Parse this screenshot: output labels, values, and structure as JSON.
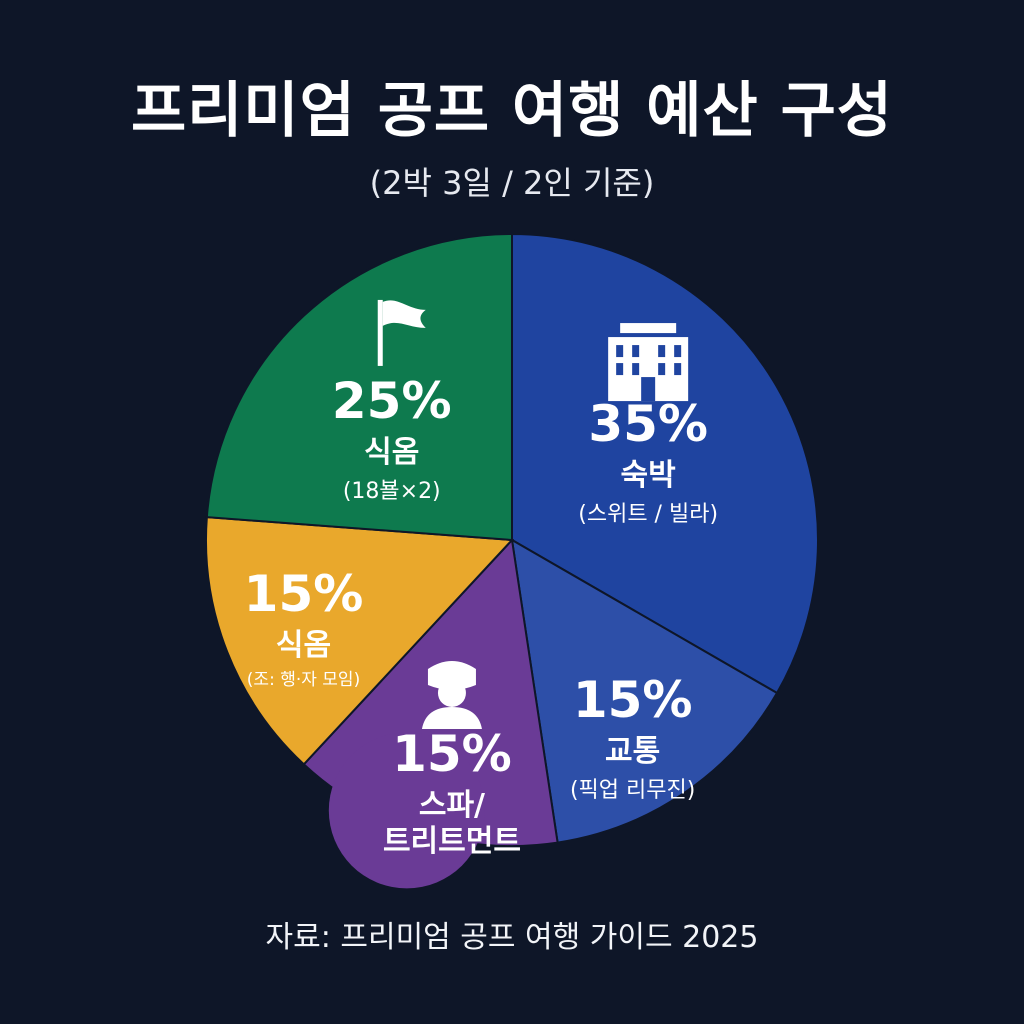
{
  "header": {
    "title": "프리미엄 공프 여행 예산 구성",
    "subtitle": "(2박 3일 / 2인 기준)"
  },
  "footer": {
    "source": "자료: 프리미엄 공프 여행 가이드 2025"
  },
  "chart_data": {
    "type": "pie",
    "title": "프리미엄 공프 여행 예산 구성",
    "subtitle": "(2박 3일 / 2인 기준)",
    "unit": "%",
    "slices": [
      {
        "value": 35,
        "value_label": "35%",
        "label": "숙박",
        "sublabel": "(스위트 / 빌라)",
        "color": "#1f44a0",
        "icon": "hotel-icon"
      },
      {
        "value": 15,
        "value_label": "15%",
        "label": "교통",
        "sublabel": "(픽업 리무진)",
        "color": "#2d4fa8",
        "icon": ""
      },
      {
        "value": 15,
        "value_label": "15%",
        "label": "스파/",
        "label2": "트리트먼트",
        "sublabel": "",
        "color": "#6a3b96",
        "icon": "spa-person-icon"
      },
      {
        "value": 15,
        "value_label": "15%",
        "label": "식옴",
        "sublabel": "(조: 행·자 모임)",
        "color": "#e9a82c",
        "icon": ""
      },
      {
        "value": 25,
        "value_label": "25%",
        "label": "식옴",
        "sublabel": "(18뵬×2)",
        "color": "#0e7a4e",
        "icon": "golf-flag-icon"
      }
    ],
    "start_angle_deg": 0,
    "direction": "clockwise",
    "legend": "none"
  }
}
